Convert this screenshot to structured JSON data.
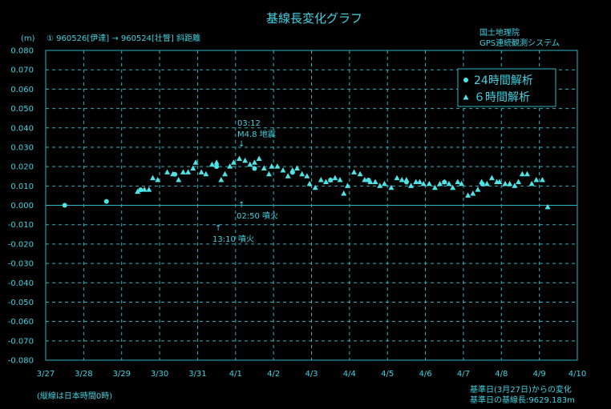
{
  "header": {
    "title": "基線長変化グラフ",
    "unit": "(m)",
    "baseline": "①  960526[伊達]  →  960524[壮瞥]  斜距離",
    "org_line1": "国土地理院",
    "org_line2": "GPS連続観測システム"
  },
  "footer": {
    "note_left": "(縦線は日本時間0時)",
    "note_right1": "基準日(3月27日)からの変化",
    "note_right2": "基準日の基線長:9629.183m"
  },
  "legend": {
    "item1": "24時間解析",
    "item2": "６時間解析"
  },
  "annotations": {
    "eq_time": "03:12",
    "eq_label": "M4.8  地震",
    "eruption1": "02:50  噴火",
    "eruption2": "13:10  噴火",
    "arrow_down": "↓",
    "arrow_up1": "↑",
    "arrow_up2": "↑"
  },
  "colors": {
    "background": "#000000",
    "foreground": "#3fd3e3",
    "marker": "#4fe3e6"
  },
  "chart_data": {
    "type": "scatter",
    "title": "基線長変化グラフ",
    "ylabel": "(m)",
    "x_tick_labels": [
      "3/27",
      "3/28",
      "3/29",
      "3/30",
      "3/31",
      "4/1",
      "4/2",
      "4/3",
      "4/4",
      "4/5",
      "4/6",
      "4/7",
      "4/8",
      "4/9",
      "4/10"
    ],
    "xlim": [
      0,
      14
    ],
    "ylim": [
      -0.08,
      0.08
    ],
    "y_tick_labels": [
      "0.080",
      "0.070",
      "0.060",
      "0.050",
      "0.040",
      "0.030",
      "0.020",
      "0.010",
      "0.000",
      "-0.010",
      "-0.020",
      "-0.030",
      "-0.040",
      "-0.050",
      "-0.060",
      "-0.070",
      "-0.080"
    ],
    "grid": true,
    "legend_position": "top-right",
    "series": [
      {
        "name": "24時間解析",
        "marker": "circle",
        "points": [
          [
            0.5,
            0.0
          ],
          [
            1.6,
            0.002
          ],
          [
            2.5,
            0.008
          ],
          [
            3.4,
            0.016
          ],
          [
            4.5,
            0.02
          ],
          [
            5.5,
            0.019
          ],
          [
            6.5,
            0.017
          ],
          [
            7.5,
            0.013
          ],
          [
            8.5,
            0.013
          ],
          [
            9.5,
            0.012
          ],
          [
            10.5,
            0.012
          ],
          [
            11.5,
            0.011
          ]
        ]
      },
      {
        "name": "６時間解析",
        "marker": "triangle",
        "points": [
          [
            2.42,
            0.007
          ],
          [
            2.6,
            0.008
          ],
          [
            2.72,
            0.008
          ],
          [
            2.82,
            0.014
          ],
          [
            2.95,
            0.013
          ],
          [
            3.2,
            0.017
          ],
          [
            3.35,
            0.016
          ],
          [
            3.5,
            0.013
          ],
          [
            3.62,
            0.017
          ],
          [
            3.75,
            0.017
          ],
          [
            3.88,
            0.019
          ],
          [
            3.95,
            0.022
          ],
          [
            4.1,
            0.017
          ],
          [
            4.22,
            0.016
          ],
          [
            4.38,
            0.021
          ],
          [
            4.5,
            0.022
          ],
          [
            4.62,
            0.013
          ],
          [
            4.72,
            0.016
          ],
          [
            4.85,
            0.02
          ],
          [
            4.95,
            0.022
          ],
          [
            5.1,
            0.024
          ],
          [
            5.25,
            0.023
          ],
          [
            5.38,
            0.021
          ],
          [
            5.5,
            0.022
          ],
          [
            5.62,
            0.024
          ],
          [
            5.75,
            0.019
          ],
          [
            5.88,
            0.016
          ],
          [
            5.95,
            0.02
          ],
          [
            6.1,
            0.02
          ],
          [
            6.25,
            0.018
          ],
          [
            6.38,
            0.015
          ],
          [
            6.5,
            0.018
          ],
          [
            6.62,
            0.019
          ],
          [
            6.75,
            0.016
          ],
          [
            6.88,
            0.015
          ],
          [
            6.95,
            0.011
          ],
          [
            7.1,
            0.009
          ],
          [
            7.25,
            0.013
          ],
          [
            7.38,
            0.012
          ],
          [
            7.5,
            0.013
          ],
          [
            7.62,
            0.014
          ],
          [
            7.75,
            0.013
          ],
          [
            7.85,
            0.006
          ],
          [
            7.95,
            0.01
          ],
          [
            8.12,
            0.017
          ],
          [
            8.28,
            0.016
          ],
          [
            8.4,
            0.013
          ],
          [
            8.55,
            0.012
          ],
          [
            8.68,
            0.012
          ],
          [
            8.8,
            0.01
          ],
          [
            8.92,
            0.011
          ],
          [
            9.1,
            0.009
          ],
          [
            9.25,
            0.014
          ],
          [
            9.38,
            0.013
          ],
          [
            9.5,
            0.013
          ],
          [
            9.62,
            0.01
          ],
          [
            9.75,
            0.012
          ],
          [
            9.85,
            0.012
          ],
          [
            9.95,
            0.011
          ],
          [
            10.1,
            0.011
          ],
          [
            10.25,
            0.009
          ],
          [
            10.38,
            0.011
          ],
          [
            10.5,
            0.012
          ],
          [
            10.62,
            0.011
          ],
          [
            10.72,
            0.009
          ],
          [
            10.85,
            0.012
          ],
          [
            10.95,
            0.011
          ],
          [
            11.12,
            0.005
          ],
          [
            11.25,
            0.006
          ],
          [
            11.38,
            0.008
          ],
          [
            11.48,
            0.012
          ],
          [
            11.62,
            0.011
          ],
          [
            11.75,
            0.014
          ],
          [
            11.88,
            0.012
          ],
          [
            11.95,
            0.012
          ],
          [
            12.1,
            0.011
          ],
          [
            12.22,
            0.011
          ],
          [
            12.35,
            0.01
          ],
          [
            12.45,
            0.012
          ],
          [
            12.55,
            0.016
          ],
          [
            12.68,
            0.016
          ],
          [
            12.8,
            0.011
          ],
          [
            12.92,
            0.013
          ],
          [
            13.08,
            0.013
          ],
          [
            13.22,
            -0.001
          ]
        ]
      }
    ]
  }
}
